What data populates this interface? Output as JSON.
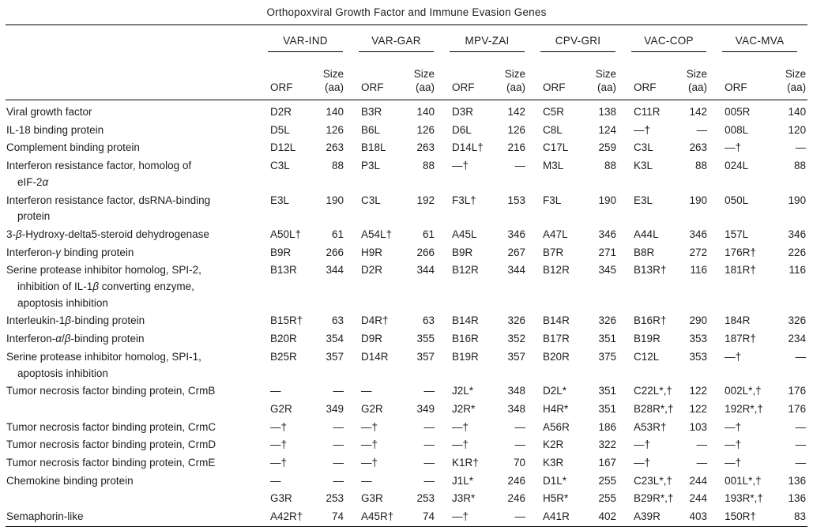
{
  "title": "Orthopoxviral Growth Factor and Immune Evasion Genes",
  "groups": [
    {
      "label": "VAR-IND"
    },
    {
      "label": "VAR-GAR"
    },
    {
      "label": "MPV-ZAI"
    },
    {
      "label": "CPV-GRI"
    },
    {
      "label": "VAC-COP"
    },
    {
      "label": "VAC-MVA"
    }
  ],
  "subheaders": {
    "orf": "ORF",
    "size_line1": "Size",
    "size_line2": "(aa)"
  },
  "rows": [
    {
      "name": [
        "Viral growth factor"
      ],
      "cells": [
        "D2R",
        "140",
        "B3R",
        "140",
        "D3R",
        "142",
        "C5R",
        "138",
        "C11R",
        "142",
        "005R",
        "140"
      ]
    },
    {
      "name": [
        "IL-18 binding protein"
      ],
      "cells": [
        "D5L",
        "126",
        "B6L",
        "126",
        "D6L",
        "126",
        "C8L",
        "124",
        "—†",
        "—",
        "008L",
        "120"
      ]
    },
    {
      "name": [
        "Complement binding protein"
      ],
      "cells": [
        "D12L",
        "263",
        "B18L",
        "263",
        "D14L†",
        "216",
        "C17L",
        "259",
        "C3L",
        "263",
        "—†",
        "—"
      ]
    },
    {
      "name": [
        "Interferon resistance factor, homolog of",
        "eIF-2α"
      ],
      "cells": [
        "C3L",
        "88",
        "P3L",
        "88",
        "—†",
        "—",
        "M3L",
        "88",
        "K3L",
        "88",
        "024L",
        "88"
      ]
    },
    {
      "name": [
        "Interferon resistance factor, dsRNA-binding",
        "protein"
      ],
      "cells": [
        "E3L",
        "190",
        "C3L",
        "192",
        "F3L†",
        "153",
        "F3L",
        "190",
        "E3L",
        "190",
        "050L",
        "190"
      ]
    },
    {
      "name": [
        "3-β-Hydroxy-delta5-steroid dehydrogenase"
      ],
      "cells": [
        "A50L†",
        "61",
        "A54L†",
        "61",
        "A45L",
        "346",
        "A47L",
        "346",
        "A44L",
        "346",
        "157L",
        "346"
      ]
    },
    {
      "name": [
        "Interferon-γ binding protein"
      ],
      "cells": [
        "B9R",
        "266",
        "H9R",
        "266",
        "B9R",
        "267",
        "B7R",
        "271",
        "B8R",
        "272",
        "176R†",
        "226"
      ]
    },
    {
      "name": [
        "Serine protease inhibitor homolog, SPI-2,",
        "inhibition of IL-1β converting enzyme,",
        "apoptosis inhibition"
      ],
      "cells": [
        "B13R",
        "344",
        "D2R",
        "344",
        "B12R",
        "344",
        "B12R",
        "345",
        "B13R†",
        "116",
        "181R†",
        "116"
      ]
    },
    {
      "name": [
        "Interleukin-1β-binding protein"
      ],
      "cells": [
        "B15R†",
        "63",
        "D4R†",
        "63",
        "B14R",
        "326",
        "B14R",
        "326",
        "B16R†",
        "290",
        "184R",
        "326"
      ]
    },
    {
      "name": [
        "Interferon-α/β-binding protein"
      ],
      "cells": [
        "B20R",
        "354",
        "D9R",
        "355",
        "B16R",
        "352",
        "B17R",
        "351",
        "B19R",
        "353",
        "187R†",
        "234"
      ]
    },
    {
      "name": [
        "Serine protease inhibitor homolog, SPI-1,",
        "apoptosis inhibition"
      ],
      "cells": [
        "B25R",
        "357",
        "D14R",
        "357",
        "B19R",
        "357",
        "B20R",
        "375",
        "C12L",
        "353",
        "—†",
        "—"
      ]
    },
    {
      "name": [
        "Tumor necrosis factor binding protein, CrmB"
      ],
      "cells": [
        "—",
        "—",
        "—",
        "—",
        "J2L*",
        "348",
        "D2L*",
        "351",
        "C22L*,†",
        "122",
        "002L*,†",
        "176"
      ]
    },
    {
      "name": [],
      "cells": [
        "G2R",
        "349",
        "G2R",
        "349",
        "J2R*",
        "348",
        "H4R*",
        "351",
        "B28R*,†",
        "122",
        "192R*,†",
        "176"
      ]
    },
    {
      "name": [
        "Tumor necrosis factor binding protein, CrmC"
      ],
      "cells": [
        "—†",
        "—",
        "—†",
        "—",
        "—†",
        "—",
        "A56R",
        "186",
        "A53R†",
        "103",
        "—†",
        "—"
      ]
    },
    {
      "name": [
        "Tumor necrosis factor binding protein, CrmD"
      ],
      "cells": [
        "—†",
        "—",
        "—†",
        "—",
        "—†",
        "—",
        "K2R",
        "322",
        "—†",
        "—",
        "—†",
        "—"
      ]
    },
    {
      "name": [
        "Tumor necrosis factor binding protein, CrmE"
      ],
      "cells": [
        "—†",
        "—",
        "—†",
        "—",
        "K1R†",
        "70",
        "K3R",
        "167",
        "—†",
        "—",
        "—†",
        "—"
      ]
    },
    {
      "name": [
        "Chemokine binding protein"
      ],
      "cells": [
        "—",
        "—",
        "—",
        "—",
        "J1L*",
        "246",
        "D1L*",
        "255",
        "C23L*,†",
        "244",
        "001L*,†",
        "136"
      ]
    },
    {
      "name": [],
      "cells": [
        "G3R",
        "253",
        "G3R",
        "253",
        "J3R*",
        "246",
        "H5R*",
        "255",
        "B29R*,†",
        "244",
        "193R*,†",
        "136"
      ]
    },
    {
      "name": [
        "Semaphorin-like"
      ],
      "cells": [
        "A42R†",
        "74",
        "A45R†",
        "74",
        "—†",
        "—",
        "A41R",
        "402",
        "A39R",
        "403",
        "150R†",
        "83"
      ]
    }
  ]
}
